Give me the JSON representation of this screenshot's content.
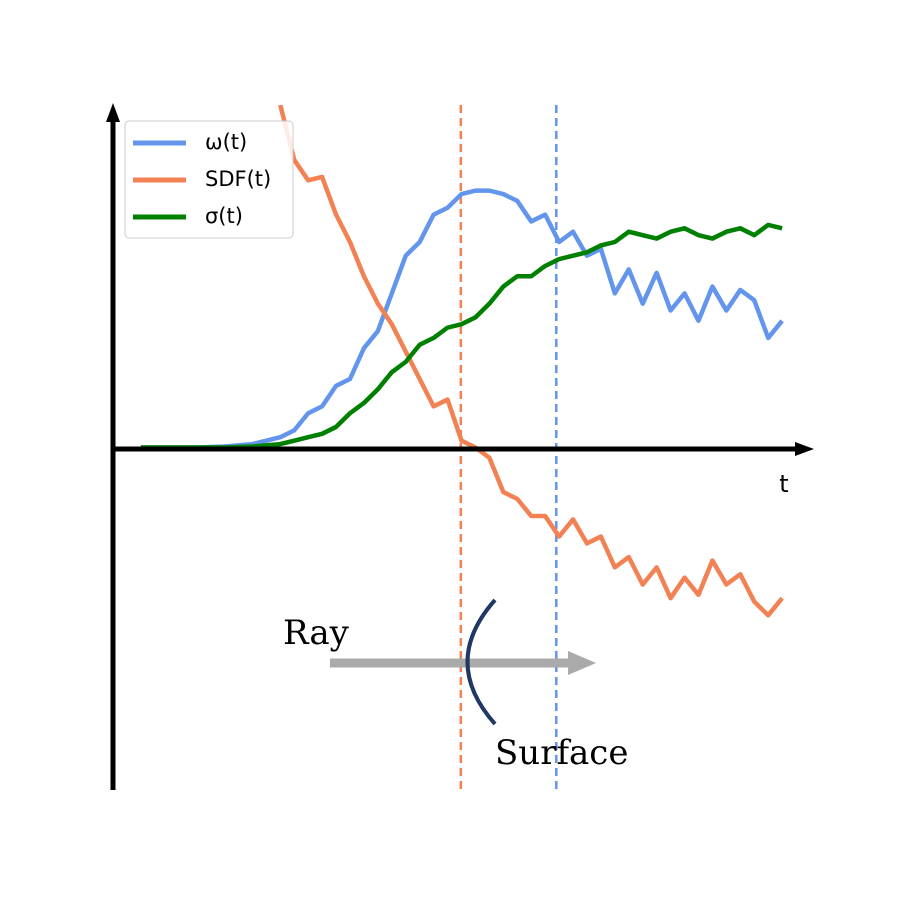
{
  "chart_data": {
    "type": "line",
    "xlabel": "t",
    "x": [
      4,
      8,
      12,
      16,
      20,
      24,
      26,
      28,
      30,
      32,
      34,
      36,
      38,
      40,
      42,
      44,
      46,
      48,
      50,
      52,
      54,
      56,
      58,
      60,
      62,
      64,
      66,
      68,
      70,
      72,
      74,
      76,
      78,
      80,
      82,
      84,
      86,
      88,
      90,
      92,
      94,
      96
    ],
    "series": [
      {
        "name": "ω(t)",
        "color": "#6495ed",
        "values": [
          0,
          0,
          0,
          0.003,
          0.01,
          0.03,
          0.05,
          0.1,
          0.12,
          0.18,
          0.2,
          0.29,
          0.34,
          0.45,
          0.56,
          0.6,
          0.68,
          0.7,
          0.74,
          0.75,
          0.75,
          0.74,
          0.72,
          0.66,
          0.68,
          0.6,
          0.63,
          0.56,
          0.58,
          0.45,
          0.52,
          0.42,
          0.51,
          0.4,
          0.45,
          0.37,
          0.47,
          0.4,
          0.46,
          0.43,
          0.32,
          0.37
        ]
      },
      {
        "name": "SDF(t)",
        "color": "#f28154",
        "values": [
          null,
          null,
          null,
          null,
          null,
          1.0,
          0.84,
          0.78,
          0.79,
          0.68,
          0.6,
          0.5,
          0.42,
          0.36,
          0.28,
          0.2,
          0.12,
          0.14,
          0.02,
          0.0,
          -0.03,
          -0.13,
          -0.15,
          -0.2,
          -0.2,
          -0.26,
          -0.21,
          -0.28,
          -0.26,
          -0.35,
          -0.32,
          -0.4,
          -0.35,
          -0.44,
          -0.38,
          -0.43,
          -0.33,
          -0.4,
          -0.37,
          -0.45,
          -0.49,
          -0.44
        ]
      },
      {
        "name": "σ(t)",
        "color": "#008000",
        "values": [
          0,
          0,
          0,
          0,
          0.003,
          0.01,
          0.02,
          0.03,
          0.04,
          0.06,
          0.1,
          0.13,
          0.17,
          0.22,
          0.25,
          0.3,
          0.32,
          0.35,
          0.36,
          0.38,
          0.42,
          0.47,
          0.5,
          0.5,
          0.53,
          0.55,
          0.56,
          0.57,
          0.59,
          0.6,
          0.63,
          0.62,
          0.61,
          0.63,
          0.64,
          0.62,
          0.61,
          0.63,
          0.64,
          0.62,
          0.65,
          0.64
        ]
      }
    ],
    "vlines": [
      {
        "x": 49.9,
        "color": "#f28154"
      },
      {
        "x": 63.6,
        "color": "#6495ed"
      }
    ],
    "annotations": {
      "ray": "Ray",
      "surface": "Surface"
    },
    "xlim": [
      0,
      100
    ],
    "ylim": [
      -1,
      1
    ],
    "legend": "upper-left"
  }
}
